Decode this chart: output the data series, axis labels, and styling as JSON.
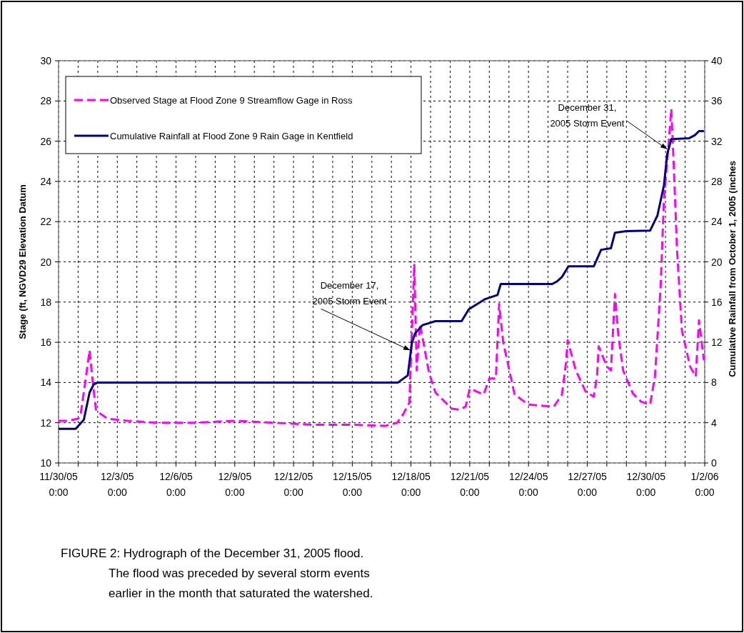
{
  "chart_data": {
    "type": "line",
    "xlabel": null,
    "ylabel": "Stage (ft, NGVD29 Elevation Datum",
    "y2label": "Cumulative Rainfall from October 1, 2005 (inches",
    "xlim": [
      "2005-11-30T00:00",
      "2006-01-02T00:00"
    ],
    "xticks": [
      {
        "value": "2005-11-30T00:00",
        "label": "11/30/05\n0:00"
      },
      {
        "value": "2005-12-01T00:00",
        "label": null
      },
      {
        "value": "2005-12-02T00:00",
        "label": null
      },
      {
        "value": "2005-12-03T00:00",
        "label": "12/3/05\n0:00"
      },
      {
        "value": "2005-12-04T00:00",
        "label": null
      },
      {
        "value": "2005-12-05T00:00",
        "label": null
      },
      {
        "value": "2005-12-06T00:00",
        "label": "12/6/05\n0:00"
      },
      {
        "value": "2005-12-07T00:00",
        "label": null
      },
      {
        "value": "2005-12-08T00:00",
        "label": null
      },
      {
        "value": "2005-12-09T00:00",
        "label": "12/9/05\n0:00"
      },
      {
        "value": "2005-12-10T00:00",
        "label": null
      },
      {
        "value": "2005-12-11T00:00",
        "label": null
      },
      {
        "value": "2005-12-12T00:00",
        "label": "12/12/05\n0:00"
      },
      {
        "value": "2005-12-13T00:00",
        "label": null
      },
      {
        "value": "2005-12-14T00:00",
        "label": null
      },
      {
        "value": "2005-12-15T00:00",
        "label": "12/15/05\n0:00"
      },
      {
        "value": "2005-12-16T00:00",
        "label": null
      },
      {
        "value": "2005-12-17T00:00",
        "label": null
      },
      {
        "value": "2005-12-18T00:00",
        "label": "12/18/05\n0:00"
      },
      {
        "value": "2005-12-19T00:00",
        "label": null
      },
      {
        "value": "2005-12-20T00:00",
        "label": null
      },
      {
        "value": "2005-12-21T00:00",
        "label": "12/21/05\n0:00"
      },
      {
        "value": "2005-12-22T00:00",
        "label": null
      },
      {
        "value": "2005-12-23T00:00",
        "label": null
      },
      {
        "value": "2005-12-24T00:00",
        "label": "12/24/05\n0:00"
      },
      {
        "value": "2005-12-25T00:00",
        "label": null
      },
      {
        "value": "2005-12-26T00:00",
        "label": null
      },
      {
        "value": "2005-12-27T00:00",
        "label": "12/27/05\n0:00"
      },
      {
        "value": "2005-12-28T00:00",
        "label": null
      },
      {
        "value": "2005-12-29T00:00",
        "label": null
      },
      {
        "value": "2005-12-30T00:00",
        "label": "12/30/05\n0:00"
      },
      {
        "value": "2005-12-31T00:00",
        "label": null
      },
      {
        "value": "2006-01-01T00:00",
        "label": null
      },
      {
        "value": "2006-01-02T00:00",
        "label": "1/2/06\n0:00"
      }
    ],
    "ylim": [
      10,
      30
    ],
    "yticks": [
      10,
      12,
      14,
      16,
      18,
      20,
      22,
      24,
      26,
      28,
      30
    ],
    "y2lim": [
      0,
      40
    ],
    "y2ticks": [
      0,
      4,
      8,
      12,
      16,
      20,
      24,
      28,
      32,
      36,
      40
    ],
    "grid": true,
    "legend": "top left",
    "marker": "none",
    "series": [
      {
        "name": "Observed Stage at Flood Zone 9 Streamflow Gage in Ross",
        "color": "#ff00ff",
        "line_style": "dashed",
        "x": [
          "2005-11-30T00:00",
          "2005-11-30T12:00",
          "2005-12-01T00:00",
          "2005-12-01T03:00",
          "2005-12-01T08:00",
          "2005-12-01T14:00",
          "2005-12-01T18:00",
          "2005-12-01T22:00",
          "2005-12-02T12:00",
          "2005-12-03T12:00",
          "2005-12-05T00:00",
          "2005-12-07T00:00",
          "2005-12-09T00:00",
          "2005-12-11T00:00",
          "2005-12-13T00:00",
          "2005-12-15T00:00",
          "2005-12-16T17:00",
          "2005-12-17T07:00",
          "2005-12-17T14:00",
          "2005-12-17T22:00",
          "2005-12-18T04:00",
          "2005-12-18T07:00",
          "2005-12-18T11:00",
          "2005-12-18T22:00",
          "2005-12-19T06:00",
          "2005-12-20T02:00",
          "2005-12-20T11:00",
          "2005-12-20T19:00",
          "2005-12-21T00:00",
          "2005-12-21T17:00",
          "2005-12-22T00:00",
          "2005-12-22T08:00",
          "2005-12-22T12:00",
          "2005-12-22T17:00",
          "2005-12-23T07:00",
          "2005-12-24T00:00",
          "2005-12-25T07:00",
          "2005-12-25T17:00",
          "2005-12-25T22:00",
          "2005-12-26T00:00",
          "2005-12-26T10:00",
          "2005-12-26T22:00",
          "2005-12-27T08:00",
          "2005-12-27T12:00",
          "2005-12-27T14:00",
          "2005-12-28T00:00",
          "2005-12-28T05:00",
          "2005-12-28T10:00",
          "2005-12-28T14:00",
          "2005-12-28T20:00",
          "2005-12-29T08:00",
          "2005-12-29T18:00",
          "2005-12-30T05:00",
          "2005-12-30T11:00",
          "2005-12-30T18:00",
          "2005-12-30T22:00",
          "2005-12-31T04:00",
          "2005-12-31T07:00",
          "2005-12-31T10:00",
          "2005-12-31T14:00",
          "2005-12-31T20:00",
          "2006-01-01T06:00",
          "2006-01-01T13:00",
          "2006-01-01T17:00",
          "2006-01-01T23:00"
        ],
        "values": [
          12.1,
          12.1,
          12.2,
          12.4,
          13.8,
          15.6,
          14.0,
          12.6,
          12.2,
          12.1,
          12.0,
          12.0,
          12.1,
          12.0,
          11.9,
          11.9,
          11.85,
          12.0,
          12.4,
          13.0,
          19.9,
          14.6,
          16.9,
          14.5,
          13.5,
          12.7,
          12.65,
          12.8,
          13.7,
          13.4,
          14.2,
          14.2,
          17.9,
          16.0,
          13.4,
          12.9,
          12.8,
          13.4,
          15.0,
          16.1,
          14.6,
          13.55,
          13.3,
          14.3,
          15.8,
          14.8,
          14.6,
          18.4,
          16.4,
          14.6,
          13.45,
          13.05,
          12.9,
          14.3,
          18.8,
          23.1,
          26.0,
          27.6,
          24.85,
          20.65,
          16.6,
          14.8,
          14.3,
          17.1,
          15.1
        ]
      },
      {
        "name": "Cumulative Rainfall at Flood Zone 9 Rain Gage in Kentfield",
        "color": "#000080",
        "line_style": "solid",
        "axis": "y2",
        "x": [
          "2005-11-30T00:00",
          "2005-11-30T21:00",
          "2005-12-01T07:00",
          "2005-12-01T14:00",
          "2005-12-01T19:00",
          "2005-12-02T00:00",
          "2005-12-17T08:00",
          "2005-12-17T20:00",
          "2005-12-18T01:00",
          "2005-12-18T05:00",
          "2005-12-18T14:00",
          "2005-12-19T06:00",
          "2005-12-20T14:00",
          "2005-12-20T23:00",
          "2005-12-21T19:00",
          "2005-12-22T10:00",
          "2005-12-22T14:00",
          "2005-12-25T05:00",
          "2005-12-25T11:00",
          "2005-12-25T17:00",
          "2005-12-26T01:00",
          "2005-12-27T08:00",
          "2005-12-27T17:00",
          "2005-12-28T05:00",
          "2005-12-28T10:00",
          "2005-12-29T00:00",
          "2005-12-30T05:00",
          "2005-12-30T14:00",
          "2005-12-30T22:00",
          "2005-12-31T02:00",
          "2005-12-31T07:00",
          "2006-01-01T05:00",
          "2006-01-01T12:00",
          "2006-01-01T17:00",
          "2006-01-01T23:00"
        ],
        "values": [
          3.4,
          3.4,
          4.3,
          7.0,
          7.8,
          8.0,
          8.0,
          8.7,
          11.9,
          12.9,
          13.7,
          14.1,
          14.1,
          15.3,
          16.3,
          16.7,
          17.8,
          17.8,
          18.05,
          18.5,
          19.55,
          19.55,
          21.2,
          21.35,
          22.9,
          23.05,
          23.1,
          24.6,
          27.6,
          30.7,
          32.2,
          32.3,
          32.6,
          33.0,
          33.0
        ]
      }
    ],
    "annotations": [
      {
        "text": "December 17,\n2005 Storm Event",
        "x": "2005-12-17T23:00",
        "y": 15.6
      },
      {
        "text": "December 31,\n2005 Storm Event",
        "x": "2005-12-31T02:00",
        "y": 25.6
      },
      "FIGURE 2: Hydrograph of the December 31, 2005 flood.\nThe flood was preceded by several storm events\nearlier in the month that saturated the watershed."
    ]
  }
}
